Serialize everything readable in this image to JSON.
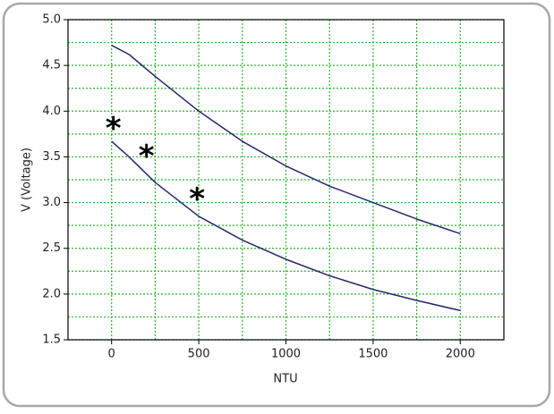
{
  "chart_data": {
    "type": "line",
    "x_label": "NTU",
    "y_label": "V (Voltage)",
    "x": [
      0,
      100,
      250,
      500,
      750,
      1000,
      1250,
      1500,
      1750,
      2000
    ],
    "series": [
      {
        "color": "#26286a",
        "values": [
          4.72,
          4.62,
          4.38,
          4.0,
          3.67,
          3.4,
          3.18,
          3.0,
          2.82,
          2.66
        ]
      },
      {
        "color": "#26286a",
        "values": [
          3.67,
          3.5,
          3.22,
          2.85,
          2.59,
          2.38,
          2.2,
          2.05,
          1.93,
          1.82
        ]
      }
    ],
    "xlim": [
      -250,
      2250
    ],
    "xticks": [
      0,
      500,
      1000,
      1500,
      2000
    ],
    "ylim": [
      1.5,
      5.0
    ],
    "yticks": [
      1.5,
      {
        "value": 2,
        "label": "2.0"
      },
      2.5,
      {
        "value": 3,
        "label": "3.0"
      },
      3.5,
      {
        "value": 4,
        "label": "4.0"
      },
      4.5,
      {
        "value": 5,
        "label": "5.0"
      }
    ],
    "grid": true,
    "grid_color": "#2bb52b",
    "annotations": [
      {
        "text": "*",
        "x": 10,
        "y": 3.87
      },
      {
        "text": "*",
        "x": 200,
        "y": 3.57
      },
      {
        "text": "*",
        "x": 490,
        "y": 3.1
      }
    ]
  }
}
